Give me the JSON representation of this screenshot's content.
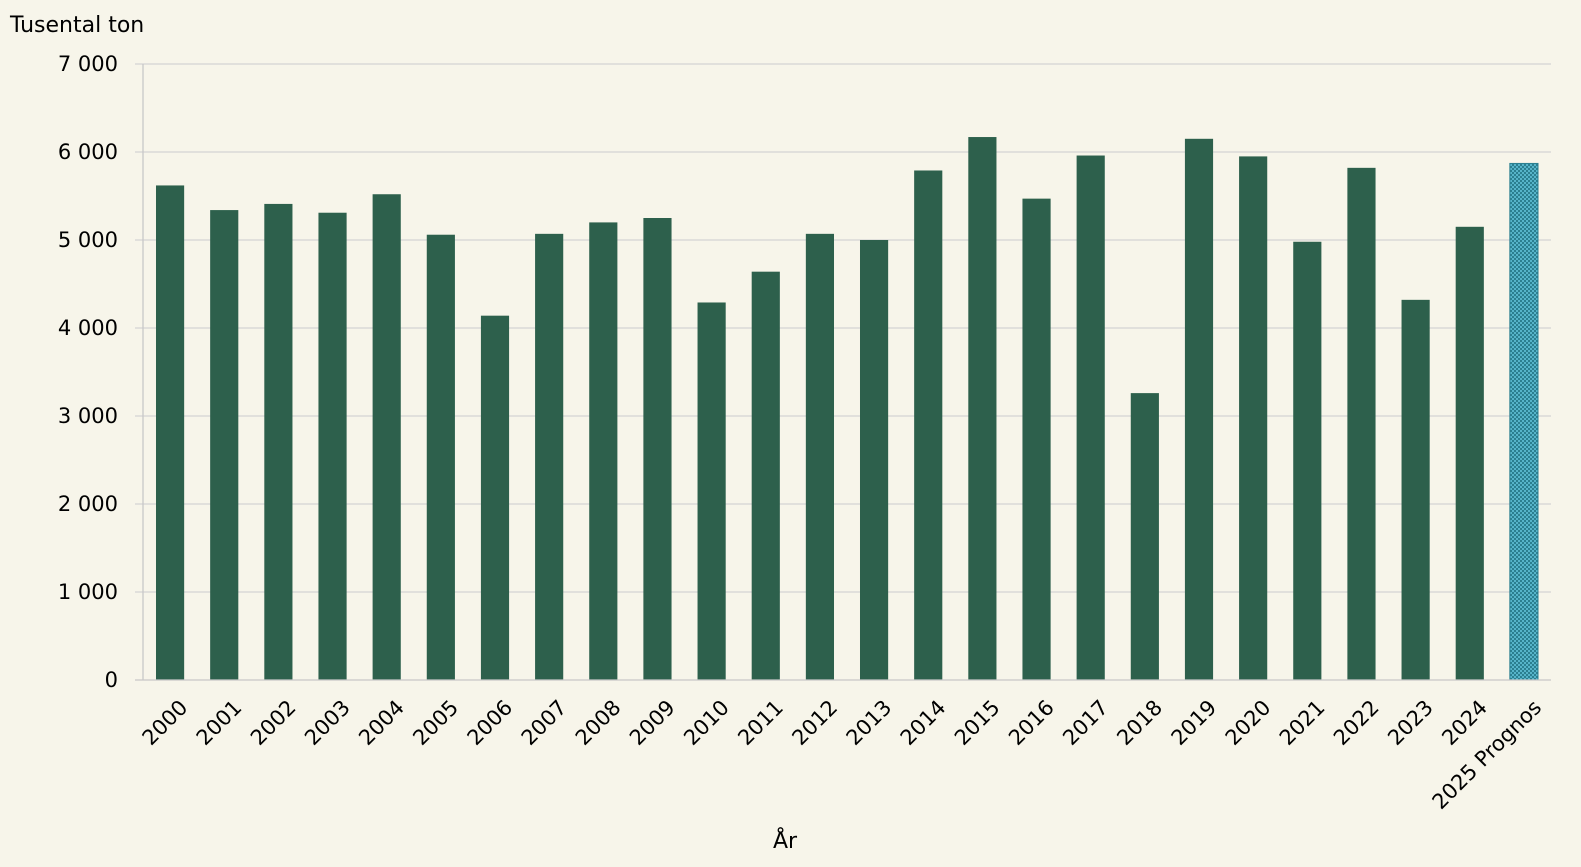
{
  "chart_data": {
    "type": "bar",
    "ylabel": "Tusental ton",
    "xlabel": "År",
    "categories": [
      "2000",
      "2001",
      "2002",
      "2003",
      "2004",
      "2005",
      "2006",
      "2007",
      "2008",
      "2009",
      "2010",
      "2011",
      "2012",
      "2013",
      "2014",
      "2015",
      "2016",
      "2017",
      "2018",
      "2019",
      "2020",
      "2021",
      "2022",
      "2023",
      "2024",
      "2025 Prognos"
    ],
    "values": [
      5620,
      5340,
      5410,
      5310,
      5520,
      5060,
      4140,
      5070,
      5200,
      5250,
      4290,
      4640,
      5070,
      5000,
      5790,
      6170,
      5470,
      5960,
      3260,
      6150,
      5950,
      4980,
      5820,
      4320,
      5150,
      5870
    ],
    "ylim": [
      0,
      7000
    ],
    "yticks": [
      0,
      1000,
      2000,
      3000,
      4000,
      5000,
      6000,
      7000
    ],
    "ytick_labels": [
      "0",
      "1 000",
      "2 000",
      "3 000",
      "4 000",
      "5 000",
      "6 000",
      "7 000"
    ],
    "grid": true,
    "colors": {
      "bar": "#2d604c",
      "forecast": "#56b4c9",
      "forecast_edge": "#2b7f90",
      "grid": "#d4d4d4",
      "axis": "#c8c8c8",
      "background": "#f7f5ea"
    },
    "forecast_category": "2025 Prognos"
  }
}
